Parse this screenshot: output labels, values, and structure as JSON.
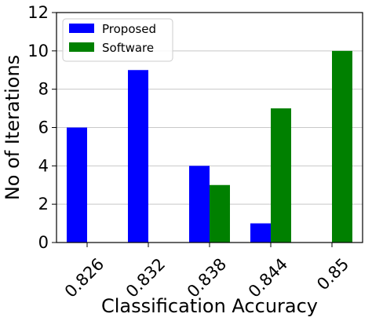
{
  "chart_data": {
    "type": "bar",
    "categories": [
      "0.826",
      "0.832",
      "0.838",
      "0.844",
      "0.85"
    ],
    "series": [
      {
        "name": "Proposed",
        "values": [
          6,
          9,
          4,
          1,
          0
        ],
        "color": "#0000ff"
      },
      {
        "name": "Software",
        "values": [
          0,
          0,
          3,
          7,
          10
        ],
        "color": "#008000"
      }
    ],
    "xlabel": "Classification Accuracy",
    "ylabel": "No of Iterations",
    "ylim": [
      0,
      12
    ],
    "yticks": [
      0,
      2,
      4,
      6,
      8,
      10,
      12
    ],
    "grid": "horizontal",
    "legend": "top-left"
  }
}
